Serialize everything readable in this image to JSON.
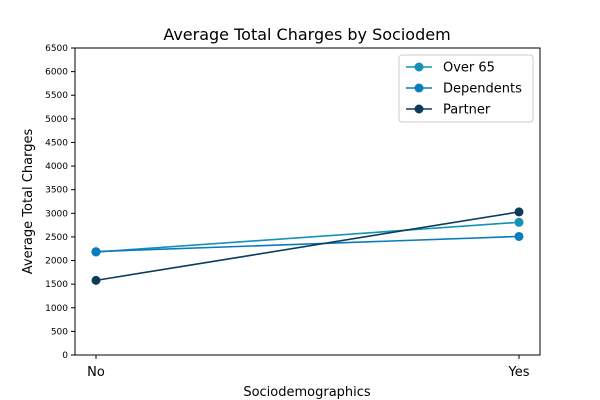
{
  "chart_data": {
    "type": "line",
    "title": "Average Total Charges by Sociodem",
    "xlabel": "Sociodemographics",
    "ylabel": "Average Total Charges",
    "categories": [
      "No",
      "Yes"
    ],
    "ylim": [
      0,
      6500
    ],
    "yticks": [
      "0",
      "500",
      "1000",
      "1500",
      "2000",
      "2500",
      "3000",
      "3500",
      "4000",
      "4500",
      "5000",
      "5500",
      "6000",
      "6500"
    ],
    "grid": false,
    "legend_position": "top-right",
    "series": [
      {
        "name": "Over 65",
        "values": [
          2180,
          2810
        ],
        "color": "#1492b8"
      },
      {
        "name": "Dependents",
        "values": [
          2190,
          2510
        ],
        "color": "#0a7bbd"
      },
      {
        "name": "Partner",
        "values": [
          1580,
          3030
        ],
        "color": "#0b3d5b"
      }
    ]
  }
}
